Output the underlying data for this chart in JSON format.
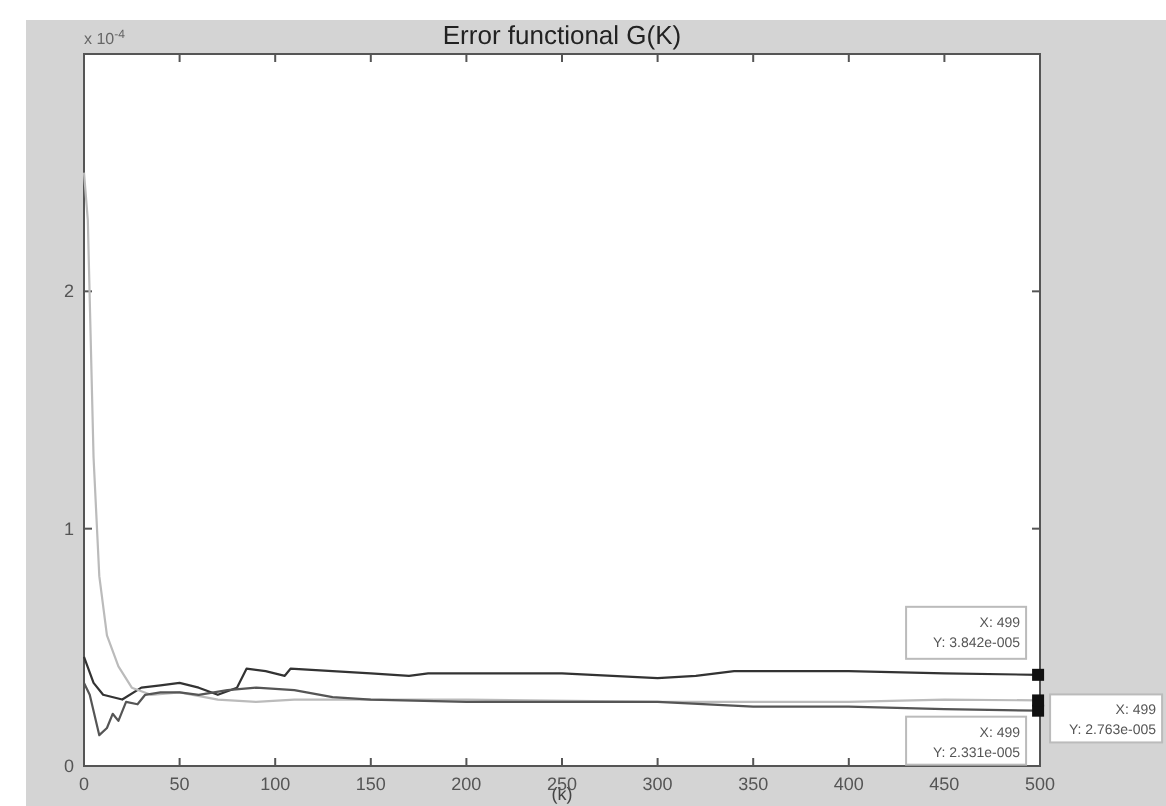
{
  "chart_data": {
    "type": "line",
    "title": "Error functional G(K)",
    "xlabel": "(k)",
    "xlim": [
      0,
      500
    ],
    "xticks": [
      0,
      50,
      100,
      150,
      200,
      250,
      300,
      350,
      400,
      450,
      500
    ],
    "ylim": [
      0,
      3
    ],
    "yticks": [
      0,
      1,
      2
    ],
    "annotations": [
      "x 10$^{-4}$",
      "X: 499\nY: 3.842e-005",
      "X: 499\nY: 2.331e-005",
      "X: 499\nY: 2.763e-005"
    ],
    "grid": false,
    "line_style": "solid",
    "series": [
      {
        "color": "#333333",
        "x": [
          0,
          5,
          10,
          20,
          30,
          40,
          50,
          60,
          70,
          80,
          85,
          95,
          105,
          108,
          130,
          150,
          170,
          180,
          200,
          250,
          300,
          320,
          340,
          360,
          400,
          450,
          499
        ],
        "values": [
          0.46,
          0.35,
          0.3,
          0.28,
          0.33,
          0.34,
          0.35,
          0.33,
          0.3,
          0.33,
          0.41,
          0.4,
          0.38,
          0.41,
          0.4,
          0.39,
          0.38,
          0.39,
          0.39,
          0.39,
          0.37,
          0.38,
          0.4,
          0.4,
          0.4,
          0.39,
          0.3842
        ]
      },
      {
        "color": "#bbbbbb",
        "x": [
          0,
          2,
          5,
          8,
          12,
          18,
          25,
          35,
          50,
          70,
          90,
          110,
          130,
          200,
          300,
          400,
          450,
          499
        ],
        "values": [
          2.5,
          2.3,
          1.3,
          0.8,
          0.55,
          0.42,
          0.33,
          0.3,
          0.31,
          0.28,
          0.27,
          0.28,
          0.28,
          0.28,
          0.27,
          0.27,
          0.28,
          0.2763
        ]
      },
      {
        "color": "#555555",
        "x": [
          0,
          3,
          8,
          12,
          15,
          18,
          22,
          28,
          32,
          40,
          50,
          60,
          75,
          90,
          110,
          130,
          150,
          200,
          250,
          300,
          350,
          400,
          450,
          499
        ],
        "values": [
          0.35,
          0.3,
          0.13,
          0.16,
          0.22,
          0.19,
          0.27,
          0.26,
          0.3,
          0.31,
          0.31,
          0.3,
          0.32,
          0.33,
          0.32,
          0.29,
          0.28,
          0.27,
          0.27,
          0.27,
          0.25,
          0.25,
          0.24,
          0.2331
        ]
      }
    ]
  }
}
